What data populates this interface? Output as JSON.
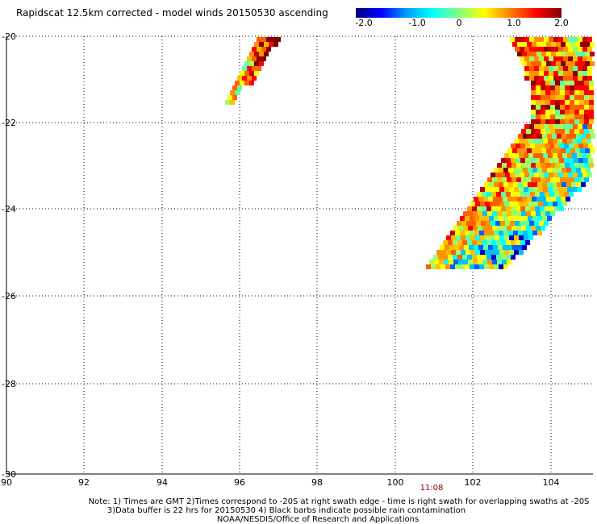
{
  "title": "Rapidscat 12.5km corrected - model winds 20150530 ascending",
  "colorbar": {
    "ticks": [
      "-2.0",
      "-1.0",
      "0",
      "1.0",
      "2.0"
    ],
    "stops": [
      "#000080",
      "#0000ff",
      "#00a0ff",
      "#00ffff",
      "#80ff80",
      "#ffff00",
      "#ff8000",
      "#ff0000",
      "#800000"
    ]
  },
  "axes": {
    "x_ticks": [
      "90",
      "92",
      "94",
      "96",
      "98",
      "100",
      "102",
      "104"
    ],
    "y_ticks": [
      "-20",
      "-22",
      "-24",
      "-26",
      "-28",
      "-30"
    ]
  },
  "time_label": "11:08",
  "footer": {
    "line1": "Note: 1) Times are GMT 2)Times correspond to -20S at right swath edge - time is right swath for overlapping swaths at -20S",
    "line2": "3)Data buffer is 22 hrs for 20150530 4) Black barbs indicate possible rain contamination",
    "line3": "NOAA/NESDIS/Office of Research and Applications"
  },
  "colors": {
    "grid": "#000000",
    "time_label": "#800000",
    "text": "#000000"
  }
}
